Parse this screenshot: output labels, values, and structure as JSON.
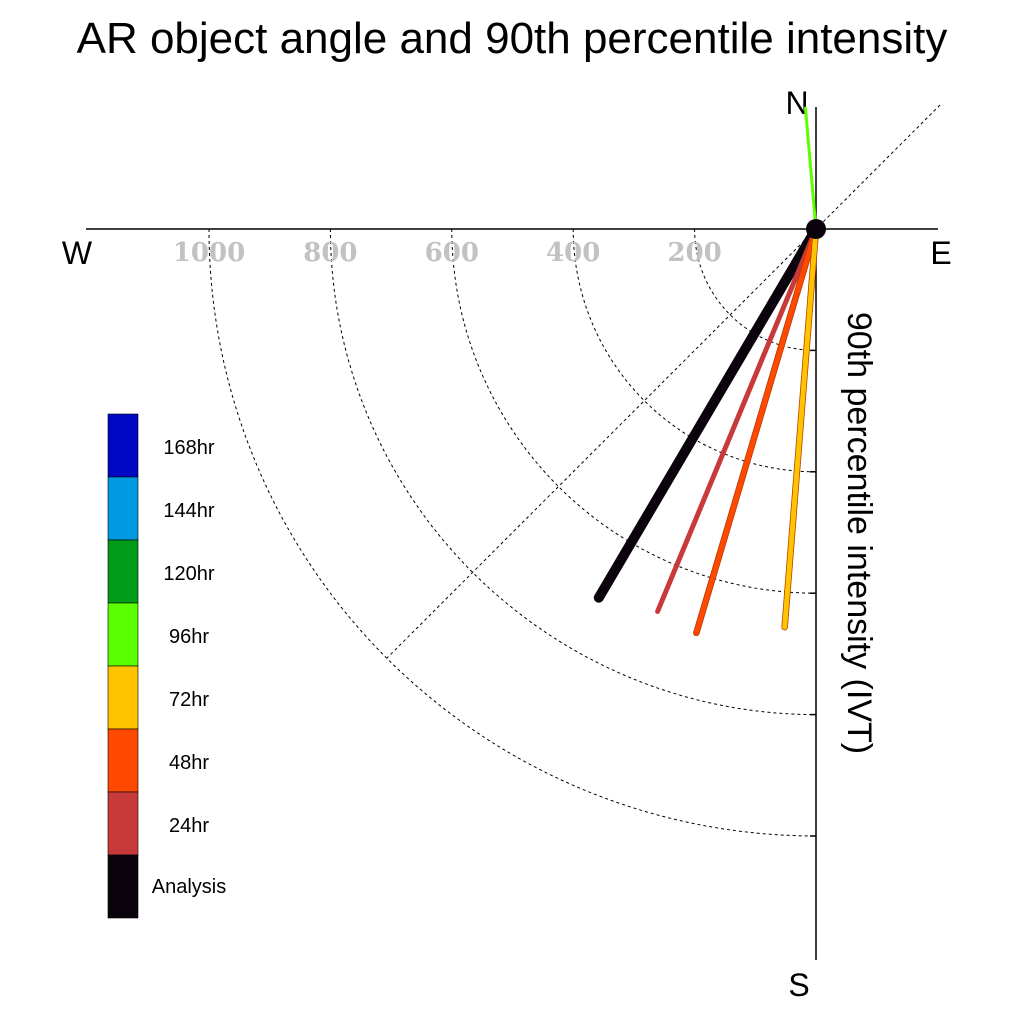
{
  "chart_data": {
    "type": "polar-vector",
    "title": "AR object angle and 90th percentile intensity",
    "radial_label": "90th percentile intensity (IVT)",
    "compass": {
      "north": "N",
      "south": "S",
      "east": "E",
      "west": "W"
    },
    "rings": [
      200,
      400,
      600,
      800,
      1000
    ],
    "ring_labels": [
      "200",
      "400",
      "600",
      "800",
      "1000"
    ],
    "series": [
      {
        "name": "Analysis",
        "angle_deg": 30.5,
        "intensity": 705,
        "color": "#0b030b"
      },
      {
        "name": "24hr",
        "angle_deg": 22.5,
        "intensity": 682,
        "color": "#c83a3a"
      },
      {
        "name": "48hr",
        "angle_deg": 16.5,
        "intensity": 694,
        "color": "#ff4800"
      },
      {
        "name": "72hr",
        "angle_deg": 4.5,
        "intensity": 658,
        "color": "#ffc400"
      },
      {
        "name": "96hr",
        "angle_deg": 5.0,
        "intensity": 200,
        "color": "#5cff00"
      }
    ],
    "legend": [
      {
        "label": "168hr",
        "color": "#0008c4"
      },
      {
        "label": "144hr",
        "color": "#009ae0"
      },
      {
        "label": "120hr",
        "color": "#009c17"
      },
      {
        "label": "96hr",
        "color": "#5cff00"
      },
      {
        "label": "72hr",
        "color": "#ffc400"
      },
      {
        "label": "48hr",
        "color": "#ff4800"
      },
      {
        "label": "24hr",
        "color": "#c83a3a"
      },
      {
        "label": "Analysis",
        "color": "#0b030b"
      }
    ],
    "grid": "dashed rings and diagonal"
  }
}
